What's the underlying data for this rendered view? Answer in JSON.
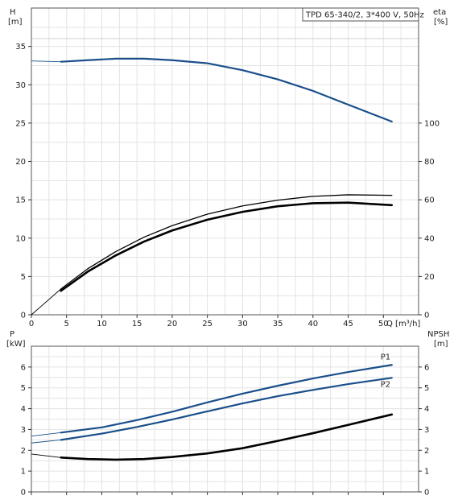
{
  "chart_data": [
    {
      "type": "line",
      "title": "TPD 65-340/2, 3*400 V, 50Hz",
      "y_left_label": "H",
      "y_left_unit": "[m]",
      "y_right_label": "eta",
      "y_right_unit": "[%]",
      "x_label": "Q [m³/h]",
      "xlim": [
        0,
        55
      ],
      "x_ticks": [
        0,
        5,
        10,
        15,
        20,
        25,
        30,
        35,
        40,
        45,
        50
      ],
      "ylim_left": [
        0,
        40
      ],
      "y_left_ticks": [
        0,
        5,
        10,
        15,
        20,
        25,
        30,
        35
      ],
      "ylim_right": [
        0,
        160
      ],
      "y_right_ticks": [
        0,
        20,
        40,
        60,
        80,
        100
      ],
      "grid": true,
      "series": [
        {
          "axis": "left",
          "color": "#1a4f8a",
          "pre": [
            [
              0,
              33.1
            ],
            [
              4.2,
              33.0
            ]
          ],
          "points": [
            [
              4.2,
              33.0
            ],
            [
              8,
              33.2
            ],
            [
              12,
              33.4
            ],
            [
              16,
              33.4
            ],
            [
              20,
              33.2
            ],
            [
              25,
              32.8
            ],
            [
              30,
              31.9
            ],
            [
              35,
              30.7
            ],
            [
              40,
              29.2
            ],
            [
              45,
              27.4
            ],
            [
              51.2,
              25.2
            ]
          ]
        },
        {
          "axis": "right",
          "color": "#000000",
          "pre": [
            [
              0,
              0
            ],
            [
              4.2,
              13.5
            ]
          ],
          "points": [
            [
              4.2,
              13.5
            ],
            [
              8,
              24
            ],
            [
              12,
              33
            ],
            [
              16,
              40.5
            ],
            [
              20,
              46.5
            ],
            [
              25,
              52.5
            ],
            [
              30,
              56.8
            ],
            [
              35,
              59.8
            ],
            [
              40,
              61.8
            ],
            [
              45,
              62.6
            ],
            [
              51.2,
              62.3
            ]
          ]
        },
        {
          "axis": "right",
          "color": "#000000",
          "heavy": true,
          "points": [
            [
              4.2,
              12.5
            ],
            [
              8,
              22.5
            ],
            [
              12,
              31
            ],
            [
              16,
              38.2
            ],
            [
              20,
              44
            ],
            [
              25,
              49.6
            ],
            [
              30,
              53.7
            ],
            [
              35,
              56.6
            ],
            [
              40,
              58.2
            ],
            [
              45,
              58.5
            ],
            [
              51.2,
              57.2
            ]
          ]
        }
      ]
    },
    {
      "type": "line",
      "y_left_label": "P",
      "y_left_unit": "[kW]",
      "y_right_label": "NPSH",
      "y_right_unit": "[m]",
      "xlim": [
        0,
        55
      ],
      "ylim_left": [
        0,
        7
      ],
      "y_left_ticks": [
        0,
        1,
        2,
        3,
        4,
        5,
        6
      ],
      "ylim_right": [
        0,
        7
      ],
      "y_right_ticks": [
        0,
        1,
        2,
        3,
        4,
        5,
        6
      ],
      "grid": true,
      "series": [
        {
          "name": "P1",
          "axis": "left",
          "color": "#1a4f8a",
          "pre": [
            [
              0,
              2.68
            ],
            [
              4.2,
              2.85
            ]
          ],
          "points": [
            [
              4.2,
              2.85
            ],
            [
              10,
              3.1
            ],
            [
              15,
              3.45
            ],
            [
              20,
              3.85
            ],
            [
              25,
              4.3
            ],
            [
              30,
              4.72
            ],
            [
              35,
              5.1
            ],
            [
              40,
              5.45
            ],
            [
              45,
              5.76
            ],
            [
              51.2,
              6.1
            ]
          ]
        },
        {
          "name": "P2",
          "axis": "left",
          "color": "#1a4f8a",
          "pre": [
            [
              0,
              2.35
            ],
            [
              4.2,
              2.5
            ]
          ],
          "points": [
            [
              4.2,
              2.5
            ],
            [
              10,
              2.8
            ],
            [
              15,
              3.12
            ],
            [
              20,
              3.48
            ],
            [
              25,
              3.87
            ],
            [
              30,
              4.25
            ],
            [
              35,
              4.6
            ],
            [
              40,
              4.9
            ],
            [
              45,
              5.18
            ],
            [
              51.2,
              5.48
            ]
          ]
        },
        {
          "axis": "right",
          "color": "#000000",
          "heavy": true,
          "pre": [
            [
              0,
              1.82
            ],
            [
              4.2,
              1.65
            ]
          ],
          "points": [
            [
              4.2,
              1.65
            ],
            [
              8,
              1.58
            ],
            [
              12,
              1.55
            ],
            [
              16,
              1.58
            ],
            [
              20,
              1.68
            ],
            [
              25,
              1.85
            ],
            [
              30,
              2.1
            ],
            [
              35,
              2.45
            ],
            [
              40,
              2.82
            ],
            [
              45,
              3.22
            ],
            [
              51.2,
              3.72
            ]
          ]
        }
      ]
    }
  ]
}
